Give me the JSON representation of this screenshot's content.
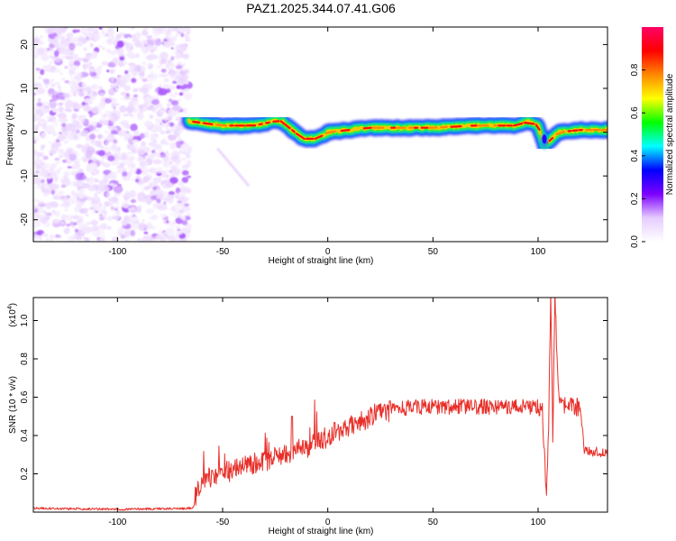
{
  "title": "PAZ1.2025.344.07.41.G06",
  "chart_data": [
    {
      "type": "heatmap",
      "xlabel": "Height of straight line (km)",
      "ylabel": "Frequency (Hz)",
      "xlim": [
        -140,
        133
      ],
      "ylim": [
        -25,
        24
      ],
      "xticks": [
        -100,
        -50,
        0,
        50,
        100
      ],
      "yticks": [
        -20,
        -10,
        0,
        10,
        20
      ],
      "colorbar": {
        "label": "Normalized spectral amplitude",
        "range": [
          0,
          1
        ],
        "ticks": [
          0.0,
          0.2,
          0.4,
          0.6,
          0.8
        ],
        "stops": [
          "#ffffff",
          "#e6ccff",
          "#7d00ff",
          "#0000ff",
          "#00ffff",
          "#00ff00",
          "#ffff00",
          "#ff8800",
          "#ff0000",
          "#ff0066"
        ]
      },
      "noise_region": {
        "x_range": [
          -140,
          -66
        ],
        "y_range": [
          -25,
          24
        ],
        "level": 0.1
      },
      "signal_trace": {
        "x": [
          -66,
          -50,
          -35,
          -25,
          -22,
          -17,
          -12,
          -5,
          0,
          10,
          20,
          30,
          50,
          70,
          80,
          90,
          95,
          100,
          103,
          110,
          120,
          133
        ],
        "y": [
          2.5,
          1.5,
          1.5,
          2.5,
          2.5,
          0.5,
          -1.5,
          -1.5,
          0,
          0.5,
          1,
          1,
          1,
          1.5,
          1.5,
          1.5,
          2.5,
          1.5,
          -3,
          0,
          0.5,
          0.5
        ]
      },
      "diagonal_streak": {
        "x": [
          -52,
          -38
        ],
        "y": [
          -4,
          -12
        ]
      }
    },
    {
      "type": "line",
      "xlabel": "Height of straight line (km)",
      "ylabel": "SNR (10 * v/v)",
      "yscale_label": "(x10",
      "yscale_exp": "4",
      "xlim": [
        -140,
        133
      ],
      "ylim": [
        0,
        1.12
      ],
      "xticks": [
        -100,
        -50,
        0,
        50,
        100
      ],
      "yticks": [
        0.2,
        0.4,
        0.6,
        0.8,
        1.0
      ],
      "series": [
        {
          "name": "SNR",
          "color": "#e8302a",
          "x": [
            -140,
            -100,
            -64,
            -62,
            -58,
            -50,
            -40,
            -30,
            -20,
            -10,
            0,
            10,
            20,
            30,
            40,
            50,
            60,
            70,
            80,
            90,
            100,
            102,
            103,
            104,
            105,
            106,
            107,
            108,
            110,
            115,
            120,
            122,
            133
          ],
          "y": [
            0.02,
            0.015,
            0.02,
            0.12,
            0.18,
            0.2,
            0.24,
            0.27,
            0.3,
            0.34,
            0.39,
            0.45,
            0.5,
            0.53,
            0.55,
            0.55,
            0.55,
            0.55,
            0.55,
            0.55,
            0.55,
            0.55,
            0.3,
            0.1,
            0.45,
            1.12,
            0.4,
            1.12,
            0.55,
            0.55,
            0.55,
            0.32,
            0.31
          ]
        }
      ]
    }
  ]
}
